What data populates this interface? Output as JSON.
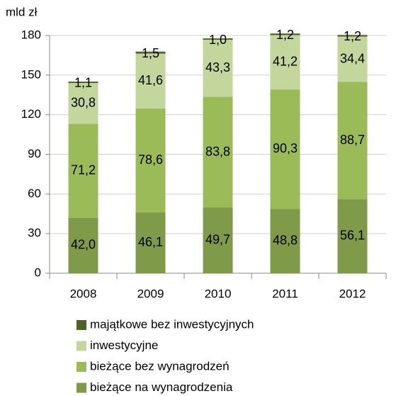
{
  "chart_data": {
    "type": "stacked_bar",
    "y_label": "mld zł",
    "categories": [
      "2008",
      "2009",
      "2010",
      "2011",
      "2012"
    ],
    "series": [
      {
        "name": "bieżące na wynagrodzenia",
        "color": "#7f9a48",
        "values": [
          42.0,
          46.1,
          49.7,
          48.8,
          56.1
        ],
        "value_labels": [
          "42,0",
          "46,1",
          "49,7",
          "48,8",
          "56,1"
        ]
      },
      {
        "name": "bieżące bez wynagrodzeń",
        "color": "#9bbb59",
        "values": [
          71.2,
          78.6,
          83.8,
          90.3,
          88.7
        ],
        "value_labels": [
          "71,2",
          "78,6",
          "83,8",
          "90,3",
          "88,7"
        ]
      },
      {
        "name": "inwestycyjne",
        "color": "#c3d69b",
        "values": [
          30.8,
          41.6,
          43.3,
          41.2,
          34.4
        ],
        "value_labels": [
          "30,8",
          "41,6",
          "43,3",
          "41,2",
          "34,4"
        ]
      },
      {
        "name": "majątkowe bez inwestycyjnych",
        "color": "#4f6228",
        "values": [
          1.1,
          1.5,
          1.0,
          1.2,
          1.2
        ],
        "value_labels": [
          "1,1",
          "1,5",
          "1,0",
          "1,2",
          "1,2"
        ]
      }
    ],
    "ylim": [
      0,
      180
    ],
    "yticks": [
      0,
      30,
      60,
      90,
      120,
      150,
      180
    ],
    "grid": true
  }
}
